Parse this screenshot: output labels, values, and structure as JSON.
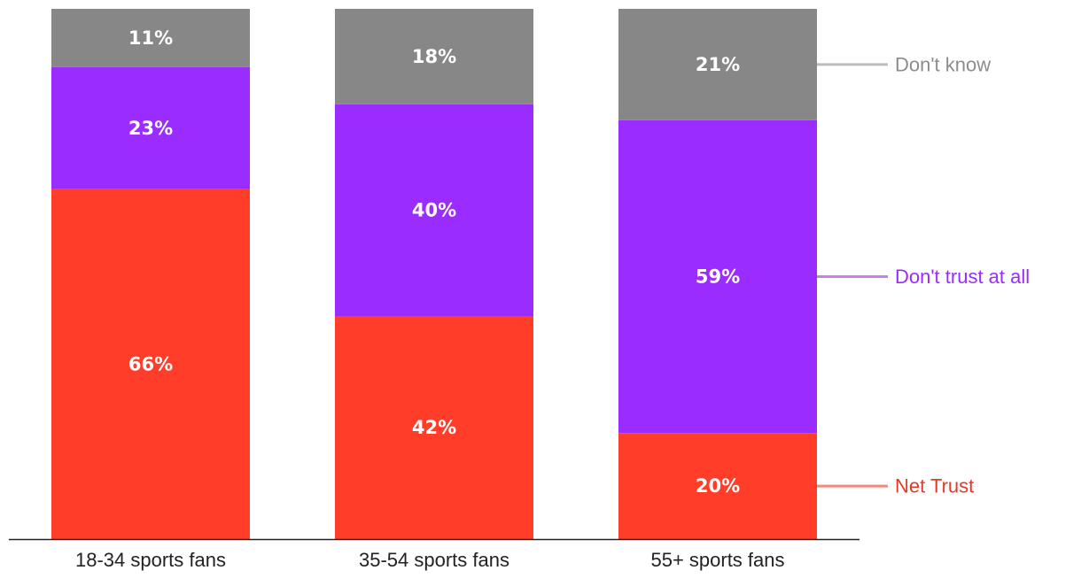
{
  "chart_data": {
    "type": "bar",
    "stacked": true,
    "title": "",
    "xlabel": "",
    "ylabel": "",
    "categories": [
      "18-34 sports fans",
      "35-54 sports fans",
      "55+ sports fans"
    ],
    "series": [
      {
        "name": "Net Trust",
        "color": "#ff3d28",
        "values": [
          66,
          42,
          20
        ]
      },
      {
        "name": "Don't trust at all",
        "color": "#9b2cff",
        "values": [
          23,
          40,
          59
        ]
      },
      {
        "name": "Don't know",
        "color": "#878787",
        "values": [
          11,
          18,
          21
        ]
      }
    ],
    "value_labels": [
      [
        "66%",
        "42%",
        "20%"
      ],
      [
        "23%",
        "40%",
        "59%"
      ],
      [
        "11%",
        "18%",
        "21%"
      ]
    ],
    "legend_colors": [
      "#f08a80",
      "#c77ff0",
      "#bdbdbd"
    ],
    "legend_text_colors": [
      "#e63a26",
      "#9b2cff",
      "#8c8c8c"
    ],
    "ylim": [
      0,
      100
    ],
    "legend_position": "right",
    "grid": false
  }
}
